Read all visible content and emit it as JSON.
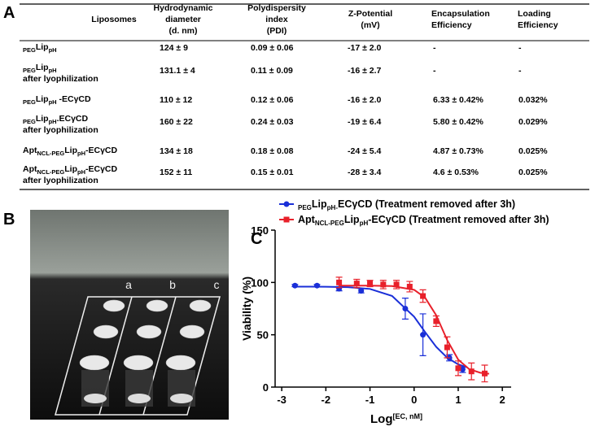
{
  "labels": [
    "A",
    "B",
    "C"
  ],
  "table": {
    "columns": [
      [
        "Liposomes"
      ],
      [
        "Hydrodynamic",
        "diameter",
        "(d. nm)"
      ],
      [
        "Polydispersity",
        "index",
        "(PDI)"
      ],
      [
        "Z-Potential",
        "(mV)"
      ],
      [
        "Encapsulation",
        "Efficiency"
      ],
      [
        "Loading",
        "Efficiency"
      ]
    ],
    "rows": [
      {
        "name": [
          [
            {
              "text": "PEG",
              "sub": true
            },
            {
              "text": "Lip"
            },
            {
              "text": "pH",
              "sub": true
            }
          ]
        ],
        "cells": [
          "124 ± 9",
          "0.09 ± 0.06",
          "-17 ± 2.0",
          "-",
          "-"
        ]
      },
      {
        "name": [
          [
            {
              "text": "PEG",
              "sub": true
            },
            {
              "text": "Lip"
            },
            {
              "text": "pH",
              "sub": true
            }
          ],
          [
            {
              "text": "after lyophilization"
            }
          ]
        ],
        "cells": [
          "131.1 ± 4",
          "0.11 ± 0.09",
          "-16 ± 2.7",
          "-",
          "-"
        ]
      },
      {
        "name": [
          [
            {
              "text": "PEG",
              "sub": true
            },
            {
              "text": "Lip"
            },
            {
              "text": "pH",
              "sub": true
            },
            {
              "text": " -ECγCD"
            }
          ]
        ],
        "cells": [
          "110 ± 12",
          "0.12 ± 0.06",
          "-16 ± 2.0",
          "6.33 ± 0.42%",
          "0.032%"
        ]
      },
      {
        "name": [
          [
            {
              "text": "PEG",
              "sub": true
            },
            {
              "text": "Lip"
            },
            {
              "text": "pH",
              "sub": true
            },
            {
              "text": ".ECγCD"
            }
          ],
          [
            {
              "text": "after lyophilization"
            }
          ]
        ],
        "cells": [
          "160 ± 22",
          "0.24 ± 0.03",
          "-19 ± 6.4",
          "5.80 ± 0.42%",
          "0.029%"
        ]
      },
      {
        "name": [
          [
            {
              "text": "Apt"
            },
            {
              "text": "NCL-PEG",
              "sub": true
            },
            {
              "text": "Lip"
            },
            {
              "text": "pH",
              "sub": true
            },
            {
              "text": "-ECγCD"
            }
          ]
        ],
        "cells": [
          "134 ± 18",
          "0.18 ± 0.08",
          "-24 ± 5.4",
          "4.87 ± 0.73%",
          "0.025%"
        ]
      },
      {
        "name": [
          [
            {
              "text": "Apt"
            },
            {
              "text": "NCL-PEG",
              "sub": true
            },
            {
              "text": "Lip"
            },
            {
              "text": "pH",
              "sub": true
            },
            {
              "text": "-ECγCD"
            }
          ],
          [
            {
              "text": "after lyophilization"
            }
          ]
        ],
        "cells": [
          "152 ± 11",
          "0.15 ± 0.01",
          "-28 ± 3.4",
          "4.6 ± 0.53%",
          "0.025%"
        ]
      }
    ]
  },
  "photo": {
    "labels": [
      "a",
      "b",
      "c"
    ]
  },
  "chart_data": {
    "type": "scatter",
    "x_label": [
      {
        "text": "Log"
      },
      {
        "text": "[EC, nM]",
        "sup": true
      }
    ],
    "y_label": "Viability (%)",
    "xlim": [
      -3.15,
      2.2
    ],
    "xticks": [
      -3,
      -2,
      -1,
      0,
      1,
      2
    ],
    "ylim": [
      0,
      150
    ],
    "yticks": [
      0,
      50,
      100,
      150
    ],
    "series": [
      {
        "name": [
          {
            "text": "PEG",
            "sub": true
          },
          {
            "text": "Lip"
          },
          {
            "text": "pH-",
            "sub": true
          },
          {
            "text": "ECγCD (Treatment removed after 3h)"
          }
        ],
        "color": "#1a2fd8",
        "marker": "circle",
        "x": [
          -2.7,
          -2.2,
          -1.7,
          -1.2,
          -0.2,
          0.2,
          0.8,
          1.1
        ],
        "values": [
          97,
          97,
          94,
          92,
          75,
          50,
          28,
          17
        ],
        "errors": [
          1,
          1,
          2,
          2,
          10,
          20,
          3,
          3
        ],
        "fit_x": [
          -2.7,
          -2,
          -1.5,
          -1,
          -0.5,
          0,
          0.25,
          0.5,
          0.75,
          1,
          1.2
        ],
        "fit_values": [
          96,
          95.9,
          95.5,
          93.8,
          87.1,
          67.3,
          52.5,
          38.5,
          28.1,
          21.7,
          18.9
        ]
      },
      {
        "name": [
          {
            "text": "Apt"
          },
          {
            "text": "NCL-PEG",
            "sub": true
          },
          {
            "text": "Lip"
          },
          {
            "text": "pH",
            "sub": true
          },
          {
            "text": "-ECγCD (Treatment removed after 3h)"
          }
        ],
        "color": "#e8202a",
        "marker": "square",
        "x": [
          -1.7,
          -1.3,
          -1.0,
          -0.7,
          -0.4,
          -0.1,
          0.2,
          0.5,
          0.75,
          1.0,
          1.3,
          1.6
        ],
        "values": [
          100,
          99,
          99,
          98,
          98,
          96,
          87,
          63,
          38,
          18,
          15,
          13
        ],
        "errors": [
          5,
          4,
          3,
          4,
          4,
          5,
          6,
          5,
          10,
          7,
          8,
          8
        ],
        "fit_x": [
          -1.7,
          -1,
          -0.5,
          0,
          0.25,
          0.5,
          0.75,
          1,
          1.25,
          1.5,
          1.7
        ],
        "fit_values": [
          97,
          97,
          96.6,
          93,
          85.4,
          68.7,
          44.9,
          26.2,
          17.1,
          13.7,
          12.7
        ]
      }
    ]
  }
}
